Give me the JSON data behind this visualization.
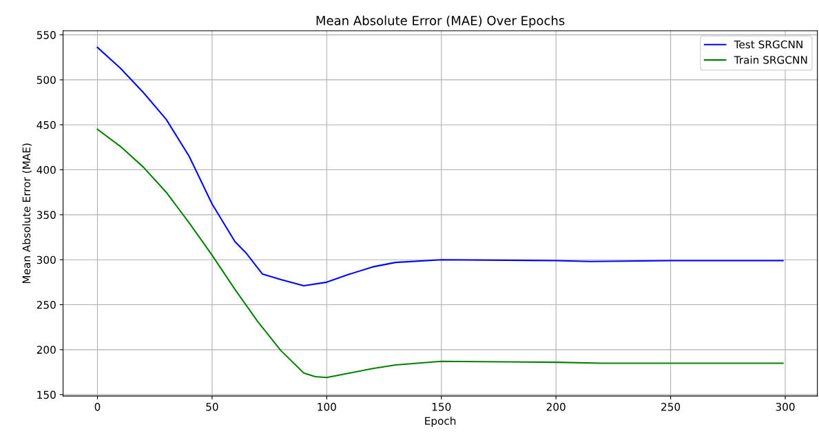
{
  "chart_data": {
    "type": "line",
    "title": "Mean Absolute Error (MAE) Over Epochs",
    "xlabel": "Epoch",
    "ylabel": "Mean Absolute Error (MAE)",
    "series": [
      {
        "name": "Test SRGCNN",
        "color": "#0000ff",
        "x": [
          0,
          10,
          20,
          30,
          40,
          50,
          60,
          65,
          72,
          80,
          90,
          100,
          110,
          120,
          130,
          150,
          200,
          215,
          250,
          299
        ],
        "values": [
          536,
          513,
          486,
          456,
          415,
          362,
          320,
          307,
          284,
          278,
          271,
          275,
          284,
          292,
          297,
          300,
          299,
          298,
          299,
          299
        ]
      },
      {
        "name": "Train SRGCNN",
        "color": "#008000",
        "x": [
          0,
          10,
          20,
          30,
          40,
          50,
          60,
          70,
          80,
          90,
          95,
          100,
          110,
          120,
          130,
          150,
          200,
          220,
          299
        ],
        "values": [
          445,
          426,
          403,
          375,
          341,
          305,
          267,
          231,
          199,
          174,
          170,
          169,
          174,
          179,
          183,
          187,
          186,
          185,
          185
        ]
      }
    ],
    "xlim": [
      -15,
      314
    ],
    "ylim": [
      148.5,
      554.5
    ],
    "xticks": [
      0,
      50,
      100,
      150,
      200,
      250,
      300
    ],
    "yticks": [
      150,
      200,
      250,
      300,
      350,
      400,
      450,
      500,
      550
    ],
    "grid": true,
    "legend": "top right",
    "marker": "none",
    "line_style": "solid"
  }
}
